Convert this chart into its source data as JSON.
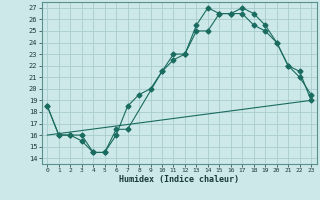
{
  "xlabel": "Humidex (Indice chaleur)",
  "bg_color": "#cce8e8",
  "grid_color": "#aacccc",
  "line_color": "#1a6b60",
  "xlim": [
    -0.5,
    23.5
  ],
  "ylim": [
    13.5,
    27.5
  ],
  "xticks": [
    0,
    1,
    2,
    3,
    4,
    5,
    6,
    7,
    8,
    9,
    10,
    11,
    12,
    13,
    14,
    15,
    16,
    17,
    18,
    19,
    20,
    21,
    22,
    23
  ],
  "yticks": [
    14,
    15,
    16,
    17,
    18,
    19,
    20,
    21,
    22,
    23,
    24,
    25,
    26,
    27
  ],
  "series1_x": [
    0,
    1,
    2,
    3,
    4,
    5,
    6,
    7,
    8,
    9,
    10,
    11,
    12,
    13,
    14,
    15,
    16,
    17,
    18,
    19,
    20,
    21,
    22,
    23
  ],
  "series1_y": [
    18.5,
    16.0,
    16.0,
    15.5,
    14.5,
    14.5,
    16.0,
    18.5,
    19.5,
    20.0,
    21.5,
    23.0,
    23.0,
    25.0,
    25.0,
    26.5,
    26.5,
    27.0,
    26.5,
    25.5,
    24.0,
    22.0,
    21.0,
    19.5
  ],
  "series2_x": [
    0,
    1,
    2,
    3,
    4,
    5,
    6,
    7,
    10,
    11,
    12,
    13,
    14,
    15,
    16,
    17,
    18,
    19,
    20,
    21,
    22,
    23
  ],
  "series2_y": [
    18.5,
    16.0,
    16.0,
    16.0,
    14.5,
    14.5,
    16.5,
    16.5,
    21.5,
    22.5,
    23.0,
    25.5,
    27.0,
    26.5,
    26.5,
    26.5,
    25.5,
    25.0,
    24.0,
    22.0,
    21.5,
    19.0
  ],
  "series3_x": [
    0,
    23
  ],
  "series3_y": [
    16.0,
    19.0
  ]
}
